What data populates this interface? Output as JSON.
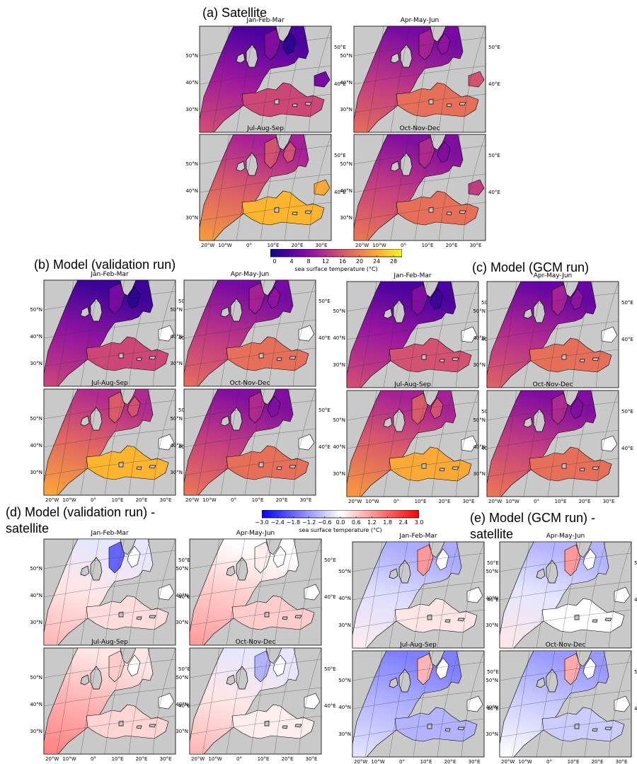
{
  "sections": {
    "a": "(a) Satellite",
    "b": "(b) Model (validation run)",
    "c": "(c) Model (GCM run)",
    "d1": "(d) Model (validation run) -",
    "d2": "satellite",
    "e1": "(e) Model (GCM run) -",
    "e2": "satellite"
  },
  "colors": {
    "land": "#c9c9c9",
    "ice_white": "#ffffff",
    "sst_scale": [
      "#0d0887",
      "#5c01a6",
      "#9c179e",
      "#cc4778",
      "#ed7953",
      "#fdb42f",
      "#f0f921"
    ],
    "diff_scale": [
      "#0000ff",
      "#ffffff",
      "#ff0000"
    ]
  },
  "chart_data": [
    {
      "type": "heatmap",
      "panel_group": "a",
      "variable": "sea surface temperature (°C)",
      "panels": [
        "Jan-Feb-Mar",
        "Apr-May-Jun",
        "Jul-Aug-Sep",
        "Oct-Nov-Dec"
      ],
      "lon_ticks": [
        "20°W",
        "10°W",
        "0°",
        "10°E",
        "20°E",
        "30°E"
      ],
      "lat_ticks": [
        "30°N",
        "40°N",
        "50°N"
      ],
      "right_ticks": [
        "40°E",
        "50°E"
      ],
      "regions": [
        "NE Atlantic",
        "North Sea",
        "Baltic Sea",
        "Mediterranean Sea",
        "Black Sea"
      ],
      "values_degC": [
        [
          10,
          8,
          2,
          15,
          7
        ],
        [
          13,
          11,
          9,
          19,
          16
        ],
        [
          17,
          16,
          16,
          25,
          24
        ],
        [
          14,
          12,
          8,
          19,
          14
        ]
      ],
      "clim": [
        0,
        30
      ]
    },
    {
      "type": "heatmap",
      "panel_group": "b",
      "variable": "sea surface temperature (°C)",
      "panels": [
        "Jan-Feb-Mar",
        "Apr-May-Jun",
        "Jul-Aug-Sep",
        "Oct-Nov-Dec"
      ],
      "lon_ticks": [
        "20°W",
        "10°W",
        "0°",
        "10°E",
        "20°E",
        "30°E"
      ],
      "lat_ticks": [
        "30°N",
        "40°N",
        "50°N"
      ],
      "right_ticks": [
        "40°E",
        "50°E"
      ],
      "regions": [
        "NE Atlantic",
        "North Sea",
        "Baltic Sea",
        "Mediterranean Sea",
        "Black Sea"
      ],
      "values_degC": [
        [
          9,
          7,
          2,
          15,
          null
        ],
        [
          13,
          11,
          9,
          19,
          null
        ],
        [
          18,
          17,
          16,
          25,
          null
        ],
        [
          14,
          12,
          8,
          19,
          null
        ]
      ],
      "clim": [
        0,
        30
      ]
    },
    {
      "type": "heatmap",
      "panel_group": "c",
      "variable": "sea surface temperature (°C)",
      "panels": [
        "Jan-Feb-Mar",
        "Apr-May-Jun",
        "Jul-Aug-Sep",
        "Oct-Nov-Dec"
      ],
      "lon_ticks": [
        "20°W",
        "10°W",
        "0°",
        "10°E",
        "20°E",
        "30°E"
      ],
      "lat_ticks": [
        "30°N",
        "40°N",
        "50°N"
      ],
      "right_ticks": [
        "40°E",
        "50°E"
      ],
      "regions": [
        "NE Atlantic",
        "North Sea",
        "Baltic Sea",
        "Mediterranean Sea",
        "Black Sea"
      ],
      "values_degC": [
        [
          10,
          8,
          3,
          16,
          null
        ],
        [
          12,
          11,
          9,
          19,
          null
        ],
        [
          17,
          17,
          16,
          24,
          null
        ],
        [
          14,
          12,
          8,
          19,
          null
        ]
      ],
      "clim": [
        0,
        30
      ]
    },
    {
      "type": "heatmap",
      "panel_group": "d",
      "variable": "sea surface temperature (°C)",
      "panels": [
        "Jan-Feb-Mar",
        "Apr-May-Jun",
        "Jul-Aug-Sep",
        "Oct-Nov-Dec"
      ],
      "lon_ticks": [
        "20°W",
        "10°W",
        "0°",
        "10°E",
        "20°E",
        "30°E"
      ],
      "lat_ticks": [
        "30°N",
        "40°N",
        "50°N"
      ],
      "right_ticks": [
        "40°E",
        "50°E"
      ],
      "regions": [
        "NE Atlantic",
        "North Sea",
        "Baltic Sea",
        "Mediterranean Sea",
        "Black Sea"
      ],
      "values_degC": [
        [
          0.3,
          -1.8,
          0.0,
          0.4,
          null
        ],
        [
          0.6,
          0.2,
          0.0,
          0.6,
          null
        ],
        [
          0.9,
          0.6,
          0.0,
          0.5,
          null
        ],
        [
          0.3,
          -0.9,
          0.0,
          0.2,
          null
        ]
      ],
      "clim": [
        -3.0,
        3.0
      ]
    },
    {
      "type": "heatmap",
      "panel_group": "e",
      "variable": "sea surface temperature (°C)",
      "panels": [
        "Jan-Feb-Mar",
        "Apr-May-Jun",
        "Jul-Aug-Sep",
        "Oct-Nov-Dec"
      ],
      "lon_ticks": [
        "20°W",
        "10°W",
        "0°",
        "10°E",
        "20°E",
        "30°E"
      ],
      "lat_ticks": [
        "30°N",
        "40°N",
        "50°N"
      ],
      "right_ticks": [
        "40°E",
        "50°E"
      ],
      "regions": [
        "NE Atlantic",
        "North Sea",
        "Baltic Sea",
        "Mediterranean Sea",
        "Black Sea"
      ],
      "values_degC": [
        [
          -0.4,
          1.2,
          0.0,
          0.3,
          null
        ],
        [
          -0.3,
          1.2,
          0.0,
          0.0,
          null
        ],
        [
          -0.9,
          0.9,
          0.0,
          -0.9,
          null
        ],
        [
          -0.6,
          1.0,
          0.0,
          -0.6,
          null
        ]
      ],
      "clim": [
        -3.0,
        3.0
      ]
    }
  ],
  "colorbars": {
    "sst": {
      "ticks": [
        "0",
        "4",
        "8",
        "12",
        "16",
        "20",
        "24",
        "28"
      ],
      "tick_values": [
        0,
        4,
        8,
        12,
        16,
        20,
        24,
        28
      ],
      "range": [
        -1,
        30
      ],
      "label": "sea surface temperature (°C)"
    },
    "diff": {
      "ticks": [
        "−3.0",
        "−2.4",
        "−1.8",
        "−1.2",
        "−0.6",
        "0.0",
        "0.6",
        "1.2",
        "1.8",
        "2.4",
        "3.0"
      ],
      "tick_values": [
        -3.0,
        -2.4,
        -1.8,
        -1.2,
        -0.6,
        0.0,
        0.6,
        1.2,
        1.8,
        2.4,
        3.0
      ],
      "range": [
        -3.0,
        3.0
      ],
      "label": "sea surface temperature (°C)"
    }
  }
}
